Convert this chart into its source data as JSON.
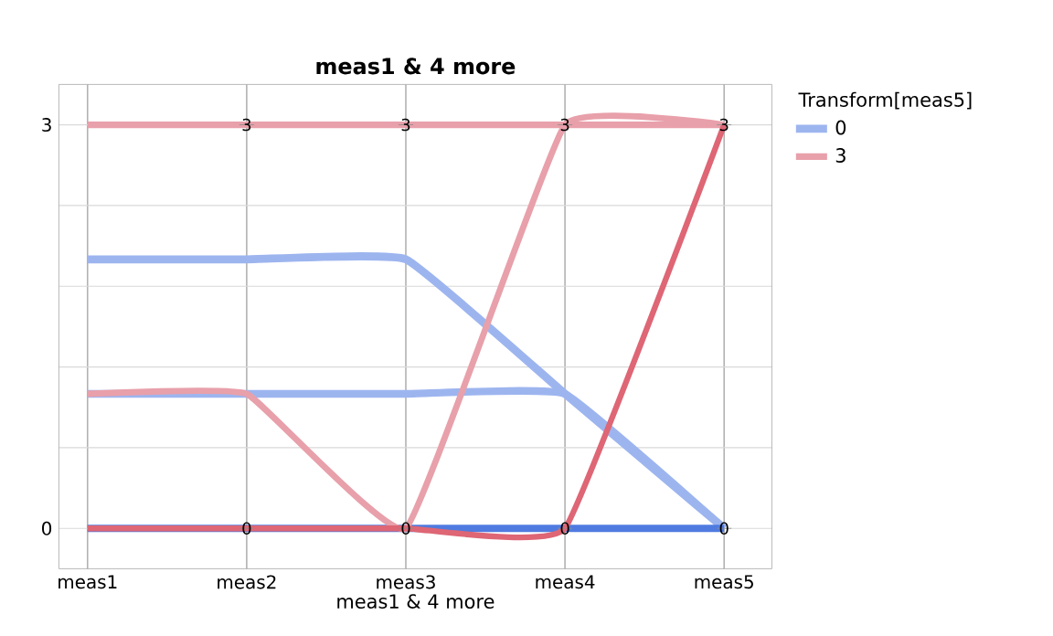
{
  "chart_data": {
    "type": "line",
    "title": "meas1 & 4 more",
    "xlabel": "meas1 & 4 more",
    "legend_title": "Transform[meas5]",
    "categories": [
      "meas1",
      "meas2",
      "meas3",
      "meas4",
      "meas5"
    ],
    "series": [
      {
        "name": "0",
        "color": "#9db5ef",
        "values": [
          2,
          2,
          2,
          1,
          0
        ]
      },
      {
        "color": "#9db5ef",
        "values": [
          1,
          1,
          1,
          1,
          0
        ]
      },
      {
        "color": "#4f7be0",
        "values": [
          0,
          0,
          0,
          0,
          0
        ]
      },
      {
        "name": "3",
        "color": "#e8a0aa",
        "values": [
          3,
          3,
          3,
          3,
          3
        ]
      },
      {
        "color": "#e8a0aa",
        "values": [
          1,
          1,
          0,
          3,
          3
        ]
      },
      {
        "color": "#de6675",
        "values": [
          0,
          0,
          0,
          0,
          3
        ]
      }
    ],
    "ylim": [
      -0.3,
      3.3
    ],
    "yticks": [
      0,
      {
        "value": 0.6,
        "label": null
      },
      {
        "value": 1.2,
        "label": null
      },
      {
        "value": 1.8,
        "label": null
      },
      {
        "value": 2.4,
        "label": null
      },
      3
    ],
    "annotations": [
      {
        "text": "3",
        "x": "meas2",
        "y": 3
      },
      {
        "text": "3",
        "x": "meas3",
        "y": 3
      },
      {
        "text": "3",
        "x": "meas4",
        "y": 3
      },
      {
        "text": "3",
        "x": "meas5",
        "y": 3
      },
      {
        "text": "0",
        "x": "meas2",
        "y": 0
      },
      {
        "text": "0",
        "x": "meas3",
        "y": 0
      },
      {
        "text": "0",
        "x": "meas4",
        "y": 0
      },
      {
        "text": "0",
        "x": "meas5",
        "y": 0
      }
    ],
    "grid": true,
    "legend": "top right",
    "marker": "none",
    "line_style": "solid"
  }
}
